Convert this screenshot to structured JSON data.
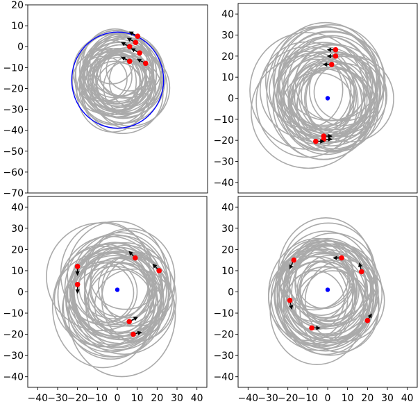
{
  "chart_data": [
    {
      "type": "scatter",
      "panel": "top-left",
      "xlim": [
        -45,
        45
      ],
      "ylim": [
        -70,
        20
      ],
      "yticks": [
        20,
        10,
        0,
        -10,
        -20,
        -30,
        -40,
        -50,
        -60,
        -70
      ],
      "xticks": [],
      "grid": false,
      "colors": {
        "orbits": "#aaaaaa",
        "primary": "#0000ff",
        "bodies": "#ff0000",
        "velocity": "#000000"
      },
      "primary_orbit": {
        "center": [
          0,
          -16
        ],
        "radius": 23
      },
      "orbit_region": {
        "center": [
          0,
          -15
        ],
        "rx": 24,
        "ry": 24
      },
      "bodies": [
        {
          "x": 10,
          "y": 5,
          "vx": -4,
          "vy": 2
        },
        {
          "x": 9,
          "y": 2,
          "vx": -4,
          "vy": 2
        },
        {
          "x": 6,
          "y": 0,
          "vx": -4,
          "vy": 2
        },
        {
          "x": 11,
          "y": -3,
          "vx": -4,
          "vy": 2
        },
        {
          "x": 14,
          "y": -8,
          "vx": -4,
          "vy": 2
        },
        {
          "x": 6,
          "y": -7,
          "vx": -4,
          "vy": 2
        }
      ]
    },
    {
      "type": "scatter",
      "panel": "top-right",
      "xlim": [
        -45,
        45
      ],
      "ylim": [
        -45,
        45
      ],
      "yticks": [
        40,
        30,
        20,
        10,
        0,
        -10,
        -20,
        -30,
        -40
      ],
      "xticks": [],
      "grid": false,
      "colors": {
        "orbits": "#aaaaaa",
        "primary": "#0000ff",
        "bodies": "#ff0000",
        "velocity": "#000000"
      },
      "primary": {
        "x": 0,
        "y": 0
      },
      "orbit_region": {
        "center": [
          0,
          0
        ],
        "rx": 34,
        "ry": 29
      },
      "bodies": [
        {
          "x": 4,
          "y": 23,
          "vx": -4,
          "vy": 0
        },
        {
          "x": 4,
          "y": 20,
          "vx": -4,
          "vy": 0
        },
        {
          "x": 2,
          "y": 16,
          "vx": -4,
          "vy": 0
        },
        {
          "x": -2,
          "y": -18,
          "vx": 4,
          "vy": 0
        },
        {
          "x": -2,
          "y": -19.5,
          "vx": 4,
          "vy": 0
        },
        {
          "x": -6,
          "y": -20.5,
          "vx": 4,
          "vy": 0
        }
      ]
    },
    {
      "type": "scatter",
      "panel": "bottom-left",
      "xlim": [
        -45,
        45
      ],
      "ylim": [
        -45,
        45
      ],
      "yticks": [
        40,
        30,
        20,
        10,
        0,
        -10,
        -20,
        -30,
        -40
      ],
      "xticks": [
        -40,
        -30,
        -20,
        -10,
        0,
        10,
        20,
        30,
        40
      ],
      "grid": false,
      "colors": {
        "orbits": "#aaaaaa",
        "primary": "#0000ff",
        "bodies": "#ff0000",
        "velocity": "#000000"
      },
      "primary": {
        "x": 0,
        "y": 1
      },
      "orbit_region": {
        "center": [
          0,
          0
        ],
        "rx": 32,
        "ry": 30
      },
      "bodies": [
        {
          "x": 9,
          "y": 16,
          "vx": -3,
          "vy": 3
        },
        {
          "x": 21,
          "y": 10,
          "vx": -3,
          "vy": 3
        },
        {
          "x": -20,
          "y": 12,
          "vx": 0,
          "vy": -4
        },
        {
          "x": -20,
          "y": 3.5,
          "vx": 0,
          "vy": -4
        },
        {
          "x": 6,
          "y": -14,
          "vx": 4,
          "vy": 2
        },
        {
          "x": 8,
          "y": -20,
          "vx": 4,
          "vy": 1
        }
      ]
    },
    {
      "type": "scatter",
      "panel": "bottom-right",
      "xlim": [
        -45,
        45
      ],
      "ylim": [
        -45,
        45
      ],
      "yticks": [
        40,
        30,
        20,
        10,
        0,
        -10,
        -20,
        -30,
        -40
      ],
      "xticks": [
        -40,
        -30,
        -20,
        -10,
        0,
        10,
        20,
        30,
        40
      ],
      "grid": false,
      "colors": {
        "orbits": "#aaaaaa",
        "primary": "#0000ff",
        "bodies": "#ff0000",
        "velocity": "#000000"
      },
      "primary": {
        "x": 0,
        "y": 1
      },
      "orbit_region": {
        "center": [
          0,
          0
        ],
        "rx": 30,
        "ry": 30
      },
      "bodies": [
        {
          "x": 7,
          "y": 16,
          "vx": -4,
          "vy": 0
        },
        {
          "x": 17,
          "y": 9.5,
          "vx": -1,
          "vy": 4
        },
        {
          "x": -17,
          "y": 15,
          "vx": -2,
          "vy": -4
        },
        {
          "x": -19,
          "y": -4,
          "vx": 1,
          "vy": -4
        },
        {
          "x": -8,
          "y": -17,
          "vx": 4,
          "vy": 0
        },
        {
          "x": 20,
          "y": -13.5,
          "vx": 2,
          "vy": 3
        }
      ]
    }
  ]
}
